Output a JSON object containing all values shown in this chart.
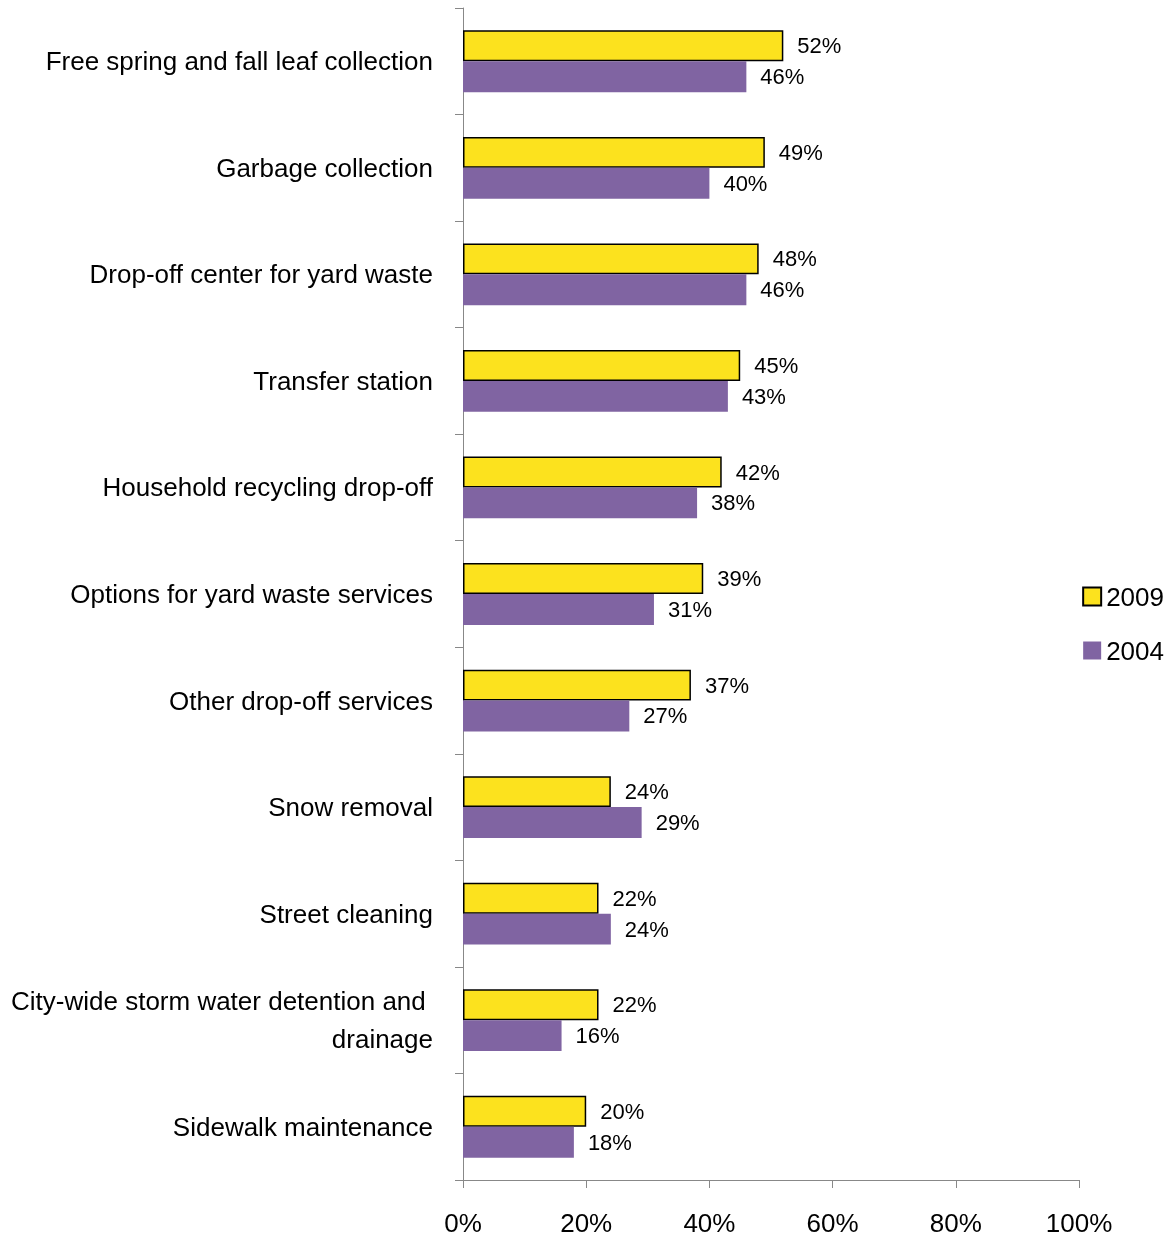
{
  "chart_data": {
    "type": "bar",
    "orientation": "horizontal",
    "categories": [
      "Free spring and fall leaf collection",
      "Garbage collection",
      "Drop-off center for yard waste",
      "Transfer station",
      "Household recycling drop-off",
      "Options for yard waste services",
      "Other drop-off services",
      "Snow removal",
      "Street cleaning",
      "City-wide storm water detention and drainage",
      "Sidewalk maintenance"
    ],
    "series": [
      {
        "name": "2009",
        "color": "#fce21e",
        "values": [
          52,
          49,
          48,
          45,
          42,
          39,
          37,
          24,
          22,
          22,
          20
        ],
        "value_labels": [
          "52%",
          "49%",
          "48%",
          "45%",
          "42%",
          "39%",
          "37%",
          "24%",
          "22%",
          "22%",
          "20%"
        ]
      },
      {
        "name": "2004",
        "color": "#8064a2",
        "values": [
          46,
          40,
          46,
          43,
          38,
          31,
          27,
          29,
          24,
          16,
          18
        ],
        "value_labels": [
          "46%",
          "40%",
          "46%",
          "43%",
          "38%",
          "31%",
          "27%",
          "29%",
          "24%",
          "16%",
          "18%"
        ]
      }
    ],
    "xlim": [
      0,
      100
    ],
    "xticks": [
      {
        "value": 0,
        "label": "0%"
      },
      {
        "value": 20,
        "label": "20%"
      },
      {
        "value": 40,
        "label": "40%"
      },
      {
        "value": 60,
        "label": "60%"
      },
      {
        "value": 80,
        "label": "80%"
      },
      {
        "value": 100,
        "label": "100%"
      }
    ],
    "grid": false,
    "legend": "right"
  }
}
